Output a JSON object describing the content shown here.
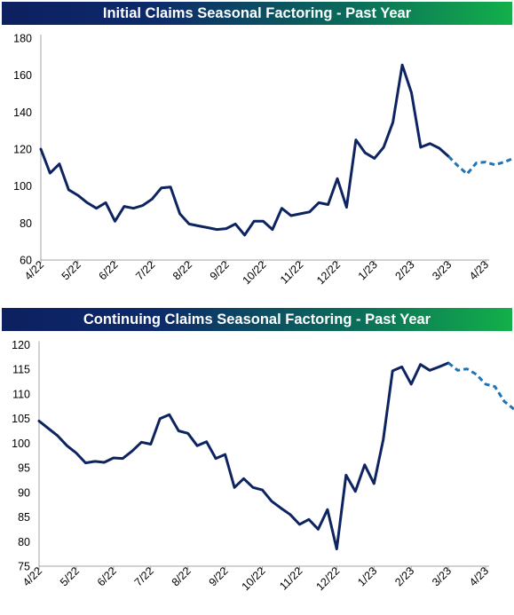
{
  "chart_data": [
    {
      "type": "line",
      "title": "Initial Claims Seasonal Factoring - Past Year",
      "xlabel": "",
      "ylabel": "",
      "ylim": [
        60,
        180
      ],
      "yticks": [
        60,
        80,
        100,
        120,
        140,
        160,
        180
      ],
      "xtick_labels": [
        "4/22",
        "5/22",
        "6/22",
        "7/22",
        "8/22",
        "9/22",
        "10/22",
        "11/22",
        "12/22",
        "1/23",
        "2/23",
        "3/23",
        "4/23"
      ],
      "grid": false,
      "series": [
        {
          "style": "solid",
          "color": "#0d2461",
          "x": [
            0,
            0.25,
            0.5,
            0.75,
            1,
            1.25,
            1.5,
            1.75,
            2,
            2.25,
            2.5,
            2.75,
            3,
            3.25,
            3.5,
            3.75,
            4,
            4.25,
            4.5,
            4.75,
            5,
            5.25,
            5.5,
            5.75,
            6,
            6.25,
            6.5,
            6.75,
            7,
            7.25,
            7.5,
            7.75,
            8,
            8.25,
            8.5,
            8.75,
            9,
            9.25,
            9.5,
            9.75,
            10,
            10.25
          ],
          "y": [
            120,
            107,
            112,
            98,
            95,
            91,
            88,
            91,
            81,
            89,
            88,
            89.5,
            93,
            99,
            99.5,
            85,
            79.5,
            78.5,
            77.5,
            76.5,
            77,
            79.5,
            73.5,
            81,
            81,
            76.5,
            88,
            84,
            85,
            86,
            91,
            90,
            104,
            88.5,
            125,
            118,
            115,
            121,
            134.5,
            165.5,
            150.5,
            121
          ]
        },
        {
          "style": "solid-tail",
          "color": "#0d2461",
          "x": [
            10.25,
            10.5,
            10.75,
            11
          ],
          "y": [
            121,
            123,
            120.5,
            116
          ]
        },
        {
          "style": "dashed",
          "color": "#1f74b8",
          "x": [
            11,
            11.25,
            11.5,
            11.75,
            12,
            12.25,
            12.5,
            12.75,
            13
          ],
          "y": [
            116,
            111,
            106.5,
            112.5,
            113,
            111.5,
            113,
            115,
            117
          ]
        }
      ]
    },
    {
      "type": "line",
      "title": "Continuing Claims Seasonal Factoring - Past Year",
      "xlabel": "",
      "ylabel": "",
      "ylim": [
        75,
        120
      ],
      "yticks": [
        75,
        80,
        85,
        90,
        95,
        100,
        105,
        110,
        115,
        120
      ],
      "xtick_labels": [
        "4/22",
        "5/22",
        "6/22",
        "7/22",
        "8/22",
        "9/22",
        "10/22",
        "11/22",
        "12/22",
        "1/23",
        "2/23",
        "3/23",
        "4/23"
      ],
      "grid": false,
      "series": [
        {
          "style": "solid",
          "color": "#0d2461",
          "x": [
            0,
            0.25,
            0.5,
            0.75,
            1,
            1.25,
            1.5,
            1.75,
            2,
            2.25,
            2.5,
            2.75,
            3,
            3.25,
            3.5,
            3.75,
            4,
            4.25,
            4.5,
            4.75,
            5,
            5.25,
            5.5,
            5.75,
            6,
            6.25,
            6.5,
            6.75,
            7,
            7.25,
            7.5,
            7.75,
            8,
            8.25,
            8.5,
            8.75,
            9,
            9.25,
            9.5,
            9.75,
            10,
            10.25,
            10.5,
            10.75,
            11
          ],
          "y": [
            104.5,
            103,
            101.5,
            99.5,
            98,
            96,
            96.3,
            96.1,
            97,
            96.9,
            98.4,
            100.2,
            99.8,
            105,
            105.8,
            102.5,
            102,
            99.5,
            100.3,
            96.9,
            97.7,
            91,
            92.8,
            91,
            90.5,
            88.2,
            86.8,
            85.5,
            83.5,
            84.5,
            82.5,
            86.5,
            78.5,
            93.5,
            90.2,
            95.6,
            91.8,
            100.7,
            114.7,
            115.5,
            112,
            116,
            114.8,
            115.5,
            116.3
          ]
        },
        {
          "style": "dashed",
          "color": "#1f74b8",
          "x": [
            11,
            11.25,
            11.5,
            11.75,
            12,
            12.25,
            12.5,
            12.75,
            13
          ],
          "y": [
            116.3,
            114.8,
            115.1,
            114,
            112,
            111.5,
            108.5,
            107,
            104
          ]
        }
      ]
    }
  ]
}
